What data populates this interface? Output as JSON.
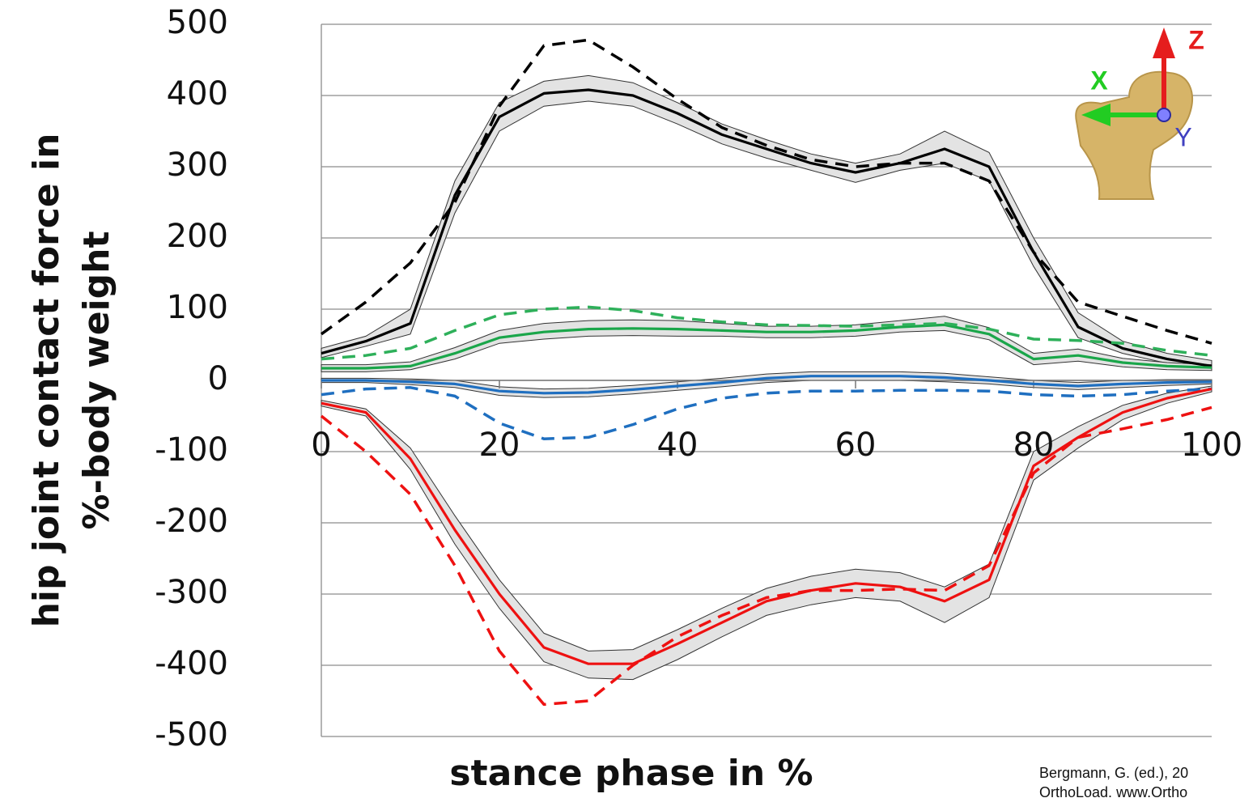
{
  "chart_data": {
    "type": "line",
    "y_label_lines": [
      "hip joint contact force in",
      "%-body weight"
    ],
    "x_label": "stance phase in %",
    "credit_lines": [
      "Bergmann, G. (ed.), 20",
      "OrthoLoad. www.Ortho"
    ],
    "inset_labels": {
      "z": "Z",
      "x": "X",
      "y": "Y"
    },
    "xlim": [
      0,
      100
    ],
    "xticks": [
      0,
      20,
      40,
      60,
      80,
      100
    ],
    "ylim": [
      -500,
      500
    ],
    "yticks": [
      500,
      400,
      300,
      200,
      100,
      0,
      -100,
      -200,
      -300,
      -400,
      -500
    ],
    "grid": true,
    "band_color": "#e3e3e3",
    "x": [
      0,
      5,
      10,
      15,
      20,
      25,
      30,
      35,
      40,
      45,
      50,
      55,
      60,
      65,
      70,
      75,
      80,
      85,
      90,
      95,
      100
    ],
    "series": [
      {
        "color": "#000000",
        "style": "solid",
        "values": [
          38,
          55,
          80,
          260,
          370,
          403,
          408,
          400,
          375,
          345,
          325,
          305,
          292,
          305,
          325,
          300,
          180,
          75,
          45,
          30,
          20
        ],
        "upper": [
          45,
          62,
          100,
          280,
          390,
          420,
          428,
          418,
          390,
          360,
          338,
          318,
          305,
          318,
          350,
          320,
          200,
          95,
          55,
          38,
          28
        ],
        "lower": [
          32,
          48,
          65,
          235,
          350,
          385,
          392,
          385,
          360,
          332,
          312,
          295,
          278,
          295,
          305,
          280,
          160,
          60,
          38,
          24,
          14
        ]
      },
      {
        "color": "#000000",
        "style": "dashed",
        "values": [
          65,
          110,
          165,
          250,
          385,
          470,
          478,
          440,
          395,
          355,
          330,
          310,
          300,
          305,
          305,
          280,
          180,
          110,
          90,
          70,
          52
        ]
      },
      {
        "color": "#1aa64a",
        "style": "solid",
        "values": [
          17,
          17,
          20,
          38,
          60,
          68,
          72,
          73,
          72,
          70,
          68,
          68,
          70,
          75,
          78,
          65,
          30,
          35,
          25,
          20,
          18
        ],
        "upper": [
          22,
          22,
          26,
          46,
          70,
          80,
          84,
          85,
          84,
          80,
          76,
          76,
          78,
          84,
          90,
          74,
          38,
          44,
          31,
          25,
          22
        ],
        "lower": [
          12,
          12,
          15,
          30,
          52,
          58,
          62,
          63,
          62,
          62,
          60,
          60,
          62,
          68,
          70,
          57,
          22,
          27,
          19,
          15,
          14
        ]
      },
      {
        "color": "#2eb05a",
        "style": "dashed",
        "values": [
          30,
          35,
          45,
          70,
          92,
          100,
          103,
          98,
          88,
          82,
          78,
          77,
          76,
          78,
          80,
          72,
          58,
          56,
          52,
          42,
          35
        ]
      },
      {
        "color": "#1f6fc0",
        "style": "solid",
        "values": [
          0,
          0,
          -2,
          -5,
          -15,
          -18,
          -17,
          -13,
          -8,
          -3,
          3,
          6,
          6,
          6,
          4,
          0,
          -5,
          -8,
          -5,
          -3,
          -2
        ],
        "upper": [
          3,
          3,
          2,
          0,
          -9,
          -12,
          -11,
          -7,
          -2,
          3,
          9,
          12,
          12,
          12,
          10,
          5,
          0,
          -3,
          0,
          1,
          1
        ],
        "lower": [
          -3,
          -3,
          -6,
          -10,
          -21,
          -24,
          -23,
          -19,
          -14,
          -9,
          -3,
          0,
          0,
          0,
          -2,
          -5,
          -10,
          -13,
          -10,
          -7,
          -5
        ]
      },
      {
        "color": "#1f6fc0",
        "style": "dashed",
        "values": [
          -20,
          -12,
          -10,
          -22,
          -60,
          -82,
          -80,
          -62,
          -40,
          -25,
          -18,
          -15,
          -15,
          -14,
          -14,
          -15,
          -20,
          -22,
          -20,
          -15,
          -12
        ]
      },
      {
        "color": "#ee1111",
        "style": "solid",
        "values": [
          -32,
          -45,
          -110,
          -210,
          -300,
          -375,
          -398,
          -398,
          -370,
          -340,
          -310,
          -295,
          -285,
          -290,
          -310,
          -280,
          -120,
          -80,
          -45,
          -25,
          -12
        ],
        "upper": [
          -28,
          -40,
          -95,
          -190,
          -280,
          -355,
          -380,
          -378,
          -350,
          -320,
          -292,
          -275,
          -265,
          -270,
          -290,
          -258,
          -100,
          -65,
          -35,
          -18,
          -8
        ],
        "lower": [
          -36,
          -50,
          -125,
          -230,
          -320,
          -395,
          -418,
          -420,
          -392,
          -360,
          -330,
          -315,
          -305,
          -310,
          -340,
          -305,
          -140,
          -95,
          -55,
          -32,
          -16
        ]
      },
      {
        "color": "#ee1111",
        "style": "dashed",
        "values": [
          -50,
          -100,
          -160,
          -260,
          -380,
          -455,
          -450,
          -400,
          -360,
          -330,
          -305,
          -295,
          -295,
          -293,
          -295,
          -260,
          -130,
          -80,
          -68,
          -55,
          -38
        ]
      }
    ]
  }
}
